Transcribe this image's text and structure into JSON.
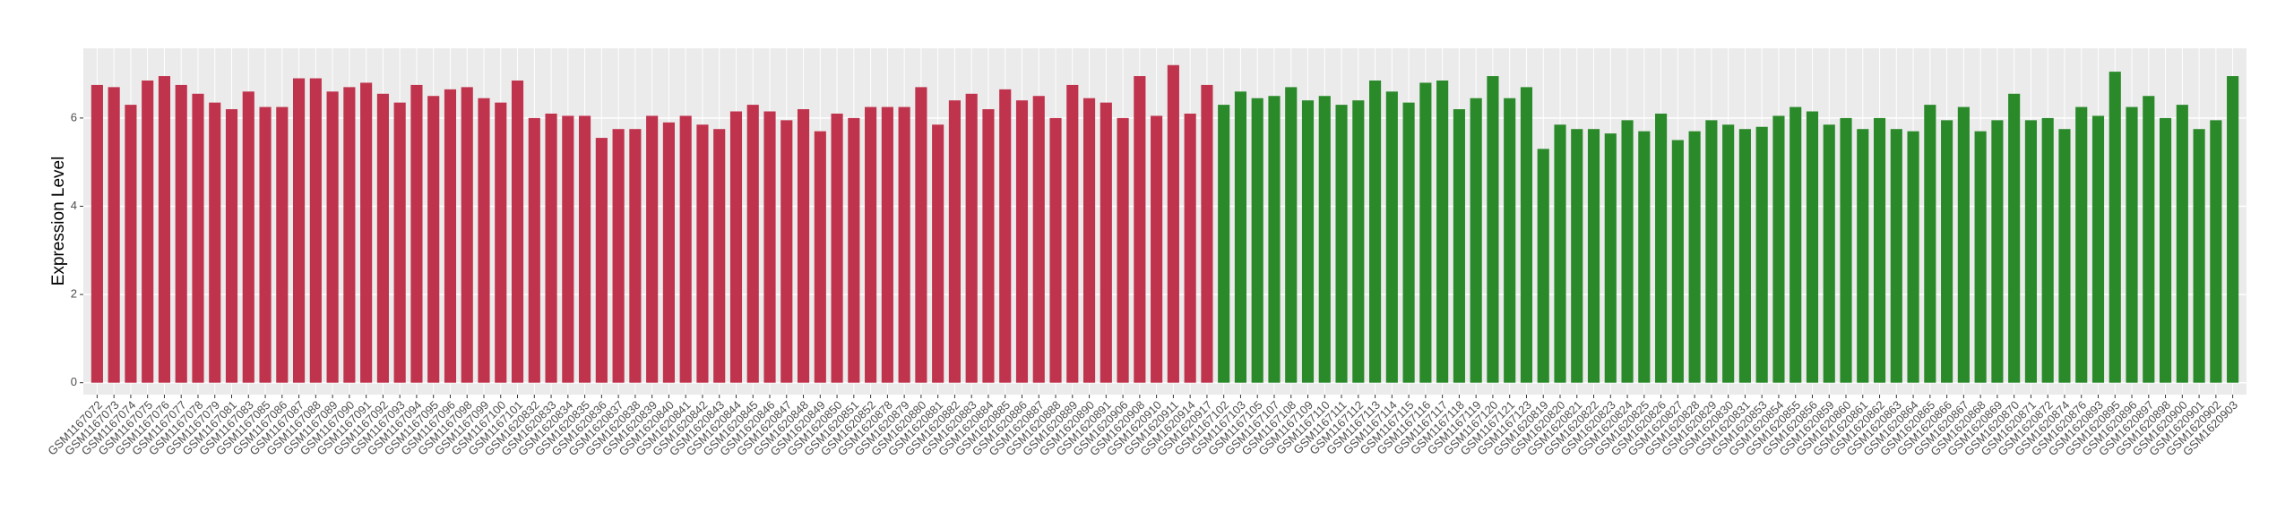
{
  "chart_data": {
    "type": "bar",
    "y_label": "Expression Level",
    "categories": [
      "GSM1167072",
      "GSM1167073",
      "GSM1167074",
      "GSM1167075",
      "GSM1167076",
      "GSM1167077",
      "GSM1167078",
      "GSM1167079",
      "GSM1167081",
      "GSM1167083",
      "GSM1167085",
      "GSM1167086",
      "GSM1167087",
      "GSM1167088",
      "GSM1167089",
      "GSM1167090",
      "GSM1167091",
      "GSM1167092",
      "GSM1167093",
      "GSM1167094",
      "GSM1167095",
      "GSM1167096",
      "GSM1167098",
      "GSM1167099",
      "GSM1167100",
      "GSM1167101",
      "GSM1620832",
      "GSM1620833",
      "GSM1620834",
      "GSM1620835",
      "GSM1620836",
      "GSM1620837",
      "GSM1620838",
      "GSM1620839",
      "GSM1620840",
      "GSM1620841",
      "GSM1620842",
      "GSM1620843",
      "GSM1620844",
      "GSM1620845",
      "GSM1620846",
      "GSM1620847",
      "GSM1620848",
      "GSM1620849",
      "GSM1620850",
      "GSM1620851",
      "GSM1620852",
      "GSM1620878",
      "GSM1620879",
      "GSM1620880",
      "GSM1620881",
      "GSM1620882",
      "GSM1620883",
      "GSM1620884",
      "GSM1620885",
      "GSM1620886",
      "GSM1620887",
      "GSM1620888",
      "GSM1620889",
      "GSM1620890",
      "GSM1620891",
      "GSM1620906",
      "GSM1620908",
      "GSM1620910",
      "GSM1620911",
      "GSM1620914",
      "GSM1620917",
      "GSM1167102",
      "GSM1167103",
      "GSM1167105",
      "GSM1167107",
      "GSM1167108",
      "GSM1167109",
      "GSM1167110",
      "GSM1167111",
      "GSM1167112",
      "GSM1167113",
      "GSM1167114",
      "GSM1167115",
      "GSM1167116",
      "GSM1167117",
      "GSM1167118",
      "GSM1167119",
      "GSM1167120",
      "GSM1167121",
      "GSM1167123",
      "GSM1620819",
      "GSM1620820",
      "GSM1620821",
      "GSM1620822",
      "GSM1620823",
      "GSM1620824",
      "GSM1620825",
      "GSM1620826",
      "GSM1620827",
      "GSM1620828",
      "GSM1620829",
      "GSM1620830",
      "GSM1620831",
      "GSM1620853",
      "GSM1620854",
      "GSM1620855",
      "GSM1620856",
      "GSM1620859",
      "GSM1620860",
      "GSM1620861",
      "GSM1620862",
      "GSM1620863",
      "GSM1620864",
      "GSM1620865",
      "GSM1620866",
      "GSM1620867",
      "GSM1620868",
      "GSM1620869",
      "GSM1620870",
      "GSM1620871",
      "GSM1620872",
      "GSM1620874",
      "GSM1620876",
      "GSM1620893",
      "GSM1620895",
      "GSM1620896",
      "GSM1620897",
      "GSM1620898",
      "GSM1620900",
      "GSM1620901",
      "GSM1620902",
      "GSM1620903"
    ],
    "values": [
      6.75,
      6.7,
      6.3,
      6.85,
      6.95,
      6.75,
      6.55,
      6.35,
      6.2,
      6.6,
      6.25,
      6.25,
      6.9,
      6.9,
      6.6,
      6.7,
      6.8,
      6.55,
      6.35,
      6.75,
      6.5,
      6.65,
      6.7,
      6.45,
      6.35,
      6.85,
      6.0,
      6.1,
      6.05,
      6.05,
      5.55,
      5.75,
      5.75,
      6.05,
      5.9,
      6.05,
      5.85,
      5.75,
      6.15,
      6.3,
      6.15,
      5.95,
      6.2,
      5.7,
      6.1,
      6.0,
      6.25,
      6.25,
      6.25,
      6.7,
      5.85,
      6.4,
      6.55,
      6.2,
      6.65,
      6.4,
      6.5,
      6.0,
      6.75,
      6.45,
      6.35,
      6.0,
      6.95,
      6.05,
      7.2,
      6.1,
      6.75,
      6.3,
      6.6,
      6.45,
      6.5,
      6.7,
      6.4,
      6.5,
      6.3,
      6.4,
      6.85,
      6.6,
      6.35,
      6.8,
      6.85,
      6.2,
      6.45,
      6.95,
      6.45,
      6.7,
      5.3,
      5.85,
      5.75,
      5.75,
      5.65,
      5.95,
      5.7,
      6.1,
      5.5,
      5.7,
      5.95,
      5.85,
      5.75,
      5.8,
      6.05,
      6.25,
      6.15,
      5.85,
      6.0,
      5.75,
      6.0,
      5.75,
      5.7,
      6.3,
      5.95,
      6.25,
      5.7,
      5.95,
      6.55,
      5.95,
      6.0,
      5.75,
      6.25,
      6.05,
      7.05,
      6.25,
      6.5,
      6.0,
      6.3,
      5.75,
      5.95,
      6.95
    ],
    "colors": [
      "#c0334d",
      "#c0334d",
      "#c0334d",
      "#c0334d",
      "#c0334d",
      "#c0334d",
      "#c0334d",
      "#c0334d",
      "#c0334d",
      "#c0334d",
      "#c0334d",
      "#c0334d",
      "#c0334d",
      "#c0334d",
      "#c0334d",
      "#c0334d",
      "#c0334d",
      "#c0334d",
      "#c0334d",
      "#c0334d",
      "#c0334d",
      "#c0334d",
      "#c0334d",
      "#c0334d",
      "#c0334d",
      "#c0334d",
      "#c0334d",
      "#c0334d",
      "#c0334d",
      "#c0334d",
      "#c0334d",
      "#c0334d",
      "#c0334d",
      "#c0334d",
      "#c0334d",
      "#c0334d",
      "#c0334d",
      "#c0334d",
      "#c0334d",
      "#c0334d",
      "#c0334d",
      "#c0334d",
      "#c0334d",
      "#c0334d",
      "#c0334d",
      "#c0334d",
      "#c0334d",
      "#c0334d",
      "#c0334d",
      "#c0334d",
      "#c0334d",
      "#c0334d",
      "#c0334d",
      "#c0334d",
      "#c0334d",
      "#c0334d",
      "#c0334d",
      "#c0334d",
      "#c0334d",
      "#c0334d",
      "#c0334d",
      "#c0334d",
      "#c0334d",
      "#c0334d",
      "#c0334d",
      "#c0334d",
      "#c0334d",
      "#2a8a2a",
      "#2a8a2a",
      "#2a8a2a",
      "#2a8a2a",
      "#2a8a2a",
      "#2a8a2a",
      "#2a8a2a",
      "#2a8a2a",
      "#2a8a2a",
      "#2a8a2a",
      "#2a8a2a",
      "#2a8a2a",
      "#2a8a2a",
      "#2a8a2a",
      "#2a8a2a",
      "#2a8a2a",
      "#2a8a2a",
      "#2a8a2a",
      "#2a8a2a",
      "#2a8a2a",
      "#2a8a2a",
      "#2a8a2a",
      "#2a8a2a",
      "#2a8a2a",
      "#2a8a2a",
      "#2a8a2a",
      "#2a8a2a",
      "#2a8a2a",
      "#2a8a2a",
      "#2a8a2a",
      "#2a8a2a",
      "#2a8a2a",
      "#2a8a2a",
      "#2a8a2a",
      "#2a8a2a",
      "#2a8a2a",
      "#2a8a2a",
      "#2a8a2a",
      "#2a8a2a",
      "#2a8a2a",
      "#2a8a2a",
      "#2a8a2a",
      "#2a8a2a",
      "#2a8a2a",
      "#2a8a2a",
      "#2a8a2a",
      "#2a8a2a",
      "#2a8a2a",
      "#2a8a2a",
      "#2a8a2a",
      "#2a8a2a",
      "#2a8a2a",
      "#2a8a2a",
      "#2a8a2a",
      "#2a8a2a",
      "#2a8a2a",
      "#2a8a2a",
      "#2a8a2a",
      "#2a8a2a",
      "#2a8a2a",
      "#2a8a2a"
    ],
    "ylim": [
      -0.27,
      7.58
    ],
    "yticks": [
      0,
      2,
      4,
      6
    ],
    "grid": true
  }
}
